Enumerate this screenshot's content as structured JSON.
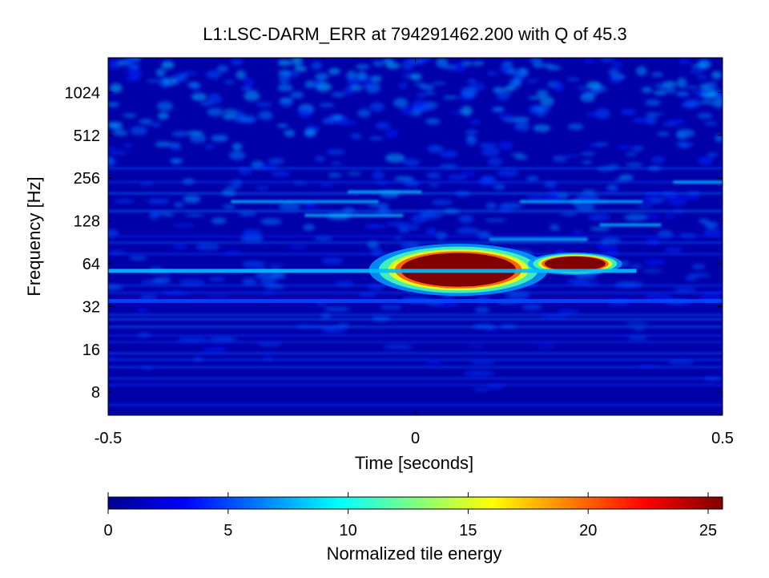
{
  "chart_data": {
    "type": "heatmap",
    "title": "L1:LSC-DARM_ERR at 794291462.200 with Q of 45.3",
    "xlabel": "Time [seconds]",
    "ylabel": "Frequency [Hz]",
    "xlim": [
      -0.5,
      0.5
    ],
    "ylim": [
      5.5,
      1800
    ],
    "yscale": "log2",
    "xticks": [
      -0.5,
      0,
      0.5
    ],
    "xtick_labels": [
      "-0.5",
      "0",
      "0.5"
    ],
    "yticks": [
      8,
      16,
      32,
      64,
      128,
      256,
      512,
      1024
    ],
    "ytick_labels": [
      "8",
      "16",
      "32",
      "64",
      "128",
      "256",
      "512",
      "1024"
    ],
    "colormap": "jet",
    "background_color": "#0000a8",
    "colorbar": {
      "label": "Normalized tile energy",
      "range": [
        0,
        25.6
      ],
      "ticks": [
        0,
        5,
        10,
        15,
        20,
        25
      ],
      "tick_labels": [
        "0",
        "5",
        "10",
        "15",
        "20",
        "25"
      ]
    },
    "features": [
      {
        "name": "main-blob",
        "t": 0.07,
        "f": 58,
        "energy": 25.6,
        "saturated": true
      },
      {
        "name": "tail-blob",
        "t": 0.26,
        "f": 64,
        "energy": 25.6,
        "saturated": true
      },
      {
        "name": "left-streak",
        "t_start": -0.5,
        "t_end": 0.36,
        "f": 57,
        "energy": 8
      },
      {
        "name": "streak-35hz",
        "t_start": -0.5,
        "t_end": 0.5,
        "f": 35,
        "energy": 5
      }
    ]
  }
}
